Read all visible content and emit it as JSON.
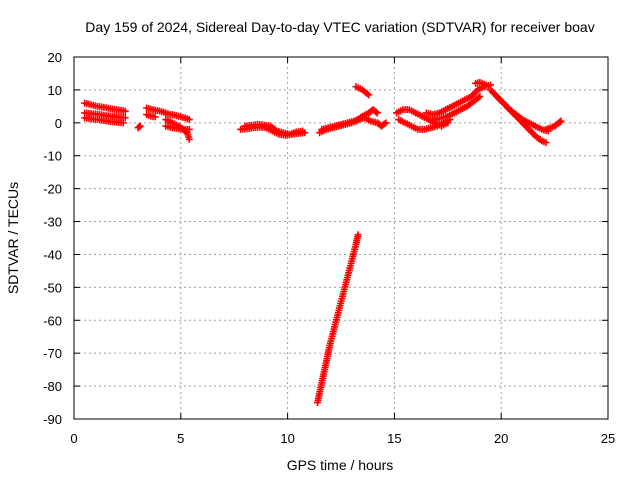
{
  "chart_data": {
    "type": "scatter",
    "title": "Day 159 of 2024, Sidereal Day-to-day VTEC variation (SDTVAR) for receiver boav",
    "xlabel": "GPS time / hours",
    "ylabel": "SDTVAR / TECUs",
    "xlim": [
      0,
      25
    ],
    "ylim": [
      -90,
      20
    ],
    "xticks": [
      0,
      5,
      10,
      15,
      20,
      25
    ],
    "yticks": [
      20,
      10,
      0,
      -10,
      -20,
      -30,
      -40,
      -50,
      -60,
      -70,
      -80,
      -90
    ],
    "grid": true,
    "marker": "+",
    "colors": {
      "series": "#ff0000",
      "grid": "#a0a0a0",
      "axes": "#000000"
    },
    "series": [
      {
        "name": "SDTVAR",
        "segments": [
          {
            "x": [
              0.5,
              0.8,
              1.1,
              1.4,
              1.7,
              2.0,
              2.3,
              2.4
            ],
            "y": [
              6,
              5.5,
              5,
              4.7,
              4.3,
              4,
              3.7,
              3.5
            ]
          },
          {
            "x": [
              0.5,
              0.8,
              1.1,
              1.4,
              1.7,
              2.0,
              2.3,
              2.4
            ],
            "y": [
              3,
              2.8,
              2.6,
              2.3,
              2,
              1.8,
              1.6,
              1.5
            ]
          },
          {
            "x": [
              0.5,
              0.8,
              1.1,
              1.4,
              1.7,
              2.0,
              2.3
            ],
            "y": [
              1.5,
              1.2,
              1,
              0.7,
              0.4,
              0.2,
              0
            ]
          },
          {
            "x": [
              3.0,
              3.1
            ],
            "y": [
              -1.5,
              -1
            ]
          },
          {
            "x": [
              3.4,
              3.7,
              4.0,
              4.3,
              4.5
            ],
            "y": [
              4.5,
              4,
              3.6,
              3,
              2.5
            ]
          },
          {
            "x": [
              3.4,
              3.6,
              3.8
            ],
            "y": [
              2.5,
              2,
              1.8
            ]
          },
          {
            "x": [
              4.3,
              4.6,
              4.9,
              5.1,
              5.3,
              5.4
            ],
            "y": [
              1,
              0,
              -1,
              -2,
              -3,
              -5
            ]
          },
          {
            "x": [
              4.3,
              4.6,
              4.9,
              5.2,
              5.4
            ],
            "y": [
              -1,
              -1.5,
              -1.8,
              -2,
              -2
            ]
          },
          {
            "x": [
              4.6,
              4.9,
              5.2,
              5.4
            ],
            "y": [
              2.5,
              2,
              1.5,
              1
            ]
          },
          {
            "x": [
              7.8,
              8.1,
              8.4,
              8.7,
              9.0,
              9.3,
              9.6,
              9.9,
              10.2,
              10.5,
              10.8
            ],
            "y": [
              -2,
              -1.8,
              -1.5,
              -1.3,
              -1.5,
              -2.5,
              -3.5,
              -3.8,
              -3.5,
              -3.2,
              -3
            ]
          },
          {
            "x": [
              8.0,
              8.3,
              8.6,
              8.9,
              9.2,
              9.5,
              9.8,
              10.1,
              10.4,
              10.7
            ],
            "y": [
              -1,
              -0.8,
              -0.5,
              -0.7,
              -1,
              -2.5,
              -3,
              -3.5,
              -2.8,
              -2.5
            ]
          },
          {
            "x": [
              11.5,
              11.8,
              12.1,
              12.4,
              12.7,
              13.0,
              13.2,
              13.5,
              13.8,
              14.0,
              14.2
            ],
            "y": [
              -3,
              -2,
              -1.5,
              -1,
              -0.5,
              0,
              0.5,
              2,
              3,
              4,
              3
            ]
          },
          {
            "x": [
              11.6,
              11.9,
              12.2,
              12.5,
              12.8,
              13.1,
              13.3,
              13.6,
              13.9,
              14.2
            ],
            "y": [
              -2,
              -1.5,
              -1,
              -0.5,
              0,
              0.5,
              1,
              1.5,
              0.5,
              0
            ]
          },
          {
            "x": [
              13.2,
              13.5,
              13.8
            ],
            "y": [
              11,
              10,
              8.5
            ]
          },
          {
            "x": [
              11.4,
              11.6,
              11.8,
              12.0,
              12.2,
              12.4,
              12.6,
              12.8,
              13.0,
              13.2,
              13.3
            ],
            "y": [
              -85,
              -79,
              -73,
              -67,
              -62,
              -57,
              -52,
              -47,
              -42,
              -37,
              -34
            ]
          },
          {
            "x": [
              14.2,
              14.4,
              14.6
            ],
            "y": [
              0,
              -1,
              0
            ]
          },
          {
            "x": [
              15.1,
              15.4,
              15.7,
              16.0,
              16.3,
              16.6,
              16.9,
              17.2,
              17.5
            ],
            "y": [
              3,
              4,
              4,
              3,
              2,
              1,
              0,
              -1,
              0
            ]
          },
          {
            "x": [
              15.2,
              15.5,
              15.8,
              16.1,
              16.4,
              16.7,
              17.0,
              17.3,
              17.6
            ],
            "y": [
              1,
              0,
              -1,
              -2,
              -2,
              -1.5,
              -1,
              0,
              1
            ]
          },
          {
            "x": [
              16.5,
              16.8,
              17.1,
              17.4,
              17.7,
              18.0,
              18.3,
              18.6,
              18.9,
              19.2,
              19.5
            ],
            "y": [
              3,
              2.5,
              3,
              4,
              5,
              6,
              7,
              8,
              10,
              11,
              11.5
            ]
          },
          {
            "x": [
              16.6,
              16.9,
              17.2,
              17.5,
              17.8,
              18.1,
              18.4,
              18.7,
              19.0
            ],
            "y": [
              1,
              1,
              1.5,
              2,
              3,
              4,
              5,
              6.5,
              8
            ]
          },
          {
            "x": [
              18.8,
              19.0,
              19.3
            ],
            "y": [
              12,
              12.3,
              11.5
            ]
          },
          {
            "x": [
              19.5,
              19.8,
              20.1,
              20.4,
              20.7,
              21.0,
              21.3,
              21.6,
              21.9,
              22.2
            ],
            "y": [
              10,
              8,
              6,
              4,
              2.5,
              1,
              0,
              -1,
              -2,
              -2.5
            ]
          },
          {
            "x": [
              19.8,
              20.1,
              20.4,
              20.7,
              21.0,
              21.3,
              21.6,
              21.9,
              22.1
            ],
            "y": [
              8,
              6,
              4,
              2,
              0,
              -2,
              -4,
              -5.5,
              -6
            ]
          },
          {
            "x": [
              22.1,
              22.3,
              22.5,
              22.7,
              22.8
            ],
            "y": [
              -2,
              -1.5,
              -1,
              0,
              0.5
            ]
          }
        ]
      }
    ]
  }
}
